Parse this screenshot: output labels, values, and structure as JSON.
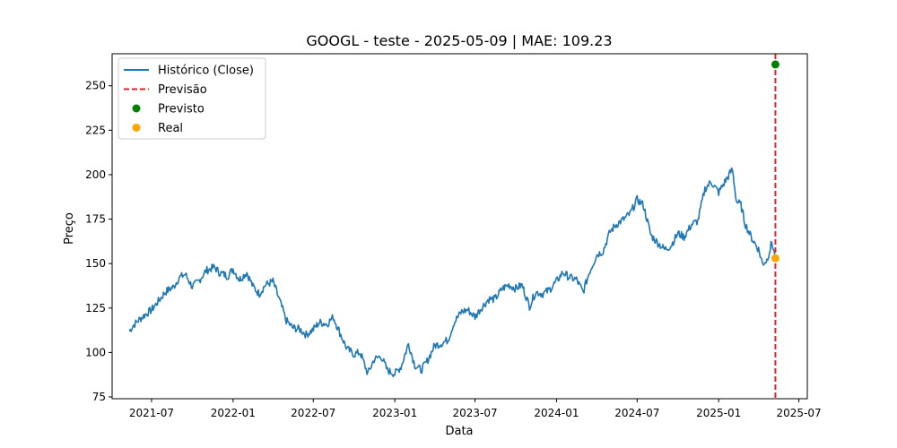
{
  "chart_data": {
    "type": "line",
    "title": "GOOGL - teste - 2025-05-09 | MAE: 109.23",
    "xlabel": "Data",
    "ylabel": "Preço",
    "ylim": [
      74,
      268
    ],
    "xlim": [
      "2021-04-03",
      "2025-07-20"
    ],
    "yticks": [
      75,
      100,
      125,
      150,
      175,
      200,
      225,
      250
    ],
    "xticks": [
      "2021-07",
      "2022-01",
      "2022-07",
      "2023-01",
      "2023-07",
      "2024-01",
      "2024-07",
      "2025-01",
      "2025-07"
    ],
    "grid": false,
    "legend_position": "top-left",
    "series": [
      {
        "name": "Histórico (Close)",
        "style": "line",
        "color": "#1f77b4",
        "points": [
          [
            "2021-05-12",
            112
          ],
          [
            "2021-05-20",
            115
          ],
          [
            "2021-06-01",
            118
          ],
          [
            "2021-06-15",
            121
          ],
          [
            "2021-07-01",
            124
          ],
          [
            "2021-07-20",
            130
          ],
          [
            "2021-08-01",
            134
          ],
          [
            "2021-08-20",
            137
          ],
          [
            "2021-09-01",
            142
          ],
          [
            "2021-09-15",
            144
          ],
          [
            "2021-10-01",
            137
          ],
          [
            "2021-10-15",
            140
          ],
          [
            "2021-11-01",
            146
          ],
          [
            "2021-11-20",
            148
          ],
          [
            "2021-12-01",
            145
          ],
          [
            "2021-12-20",
            143
          ],
          [
            "2022-01-01",
            147
          ],
          [
            "2022-01-15",
            141
          ],
          [
            "2022-02-01",
            145
          ],
          [
            "2022-02-15",
            137
          ],
          [
            "2022-03-01",
            133
          ],
          [
            "2022-03-15",
            138
          ],
          [
            "2022-04-01",
            140
          ],
          [
            "2022-04-15",
            130
          ],
          [
            "2022-05-01",
            118
          ],
          [
            "2022-05-15",
            114
          ],
          [
            "2022-06-01",
            113
          ],
          [
            "2022-06-15",
            110
          ],
          [
            "2022-07-01",
            113
          ],
          [
            "2022-07-15",
            117
          ],
          [
            "2022-08-01",
            116
          ],
          [
            "2022-08-15",
            120
          ],
          [
            "2022-09-01",
            110
          ],
          [
            "2022-09-15",
            102
          ],
          [
            "2022-10-01",
            99
          ],
          [
            "2022-10-15",
            100
          ],
          [
            "2022-11-01",
            88
          ],
          [
            "2022-11-15",
            96
          ],
          [
            "2022-12-01",
            98
          ],
          [
            "2022-12-15",
            90
          ],
          [
            "2023-01-01",
            88
          ],
          [
            "2023-01-15",
            92
          ],
          [
            "2023-02-01",
            105
          ],
          [
            "2023-02-15",
            93
          ],
          [
            "2023-03-01",
            90
          ],
          [
            "2023-03-15",
            95
          ],
          [
            "2023-04-01",
            104
          ],
          [
            "2023-04-15",
            105
          ],
          [
            "2023-05-01",
            107
          ],
          [
            "2023-05-15",
            117
          ],
          [
            "2023-06-01",
            123
          ],
          [
            "2023-06-15",
            124
          ],
          [
            "2023-07-01",
            120
          ],
          [
            "2023-07-15",
            125
          ],
          [
            "2023-08-01",
            130
          ],
          [
            "2023-08-15",
            130
          ],
          [
            "2023-09-01",
            136
          ],
          [
            "2023-09-15",
            138
          ],
          [
            "2023-10-01",
            136
          ],
          [
            "2023-10-15",
            138
          ],
          [
            "2023-11-01",
            126
          ],
          [
            "2023-11-15",
            134
          ],
          [
            "2023-12-01",
            133
          ],
          [
            "2023-12-15",
            135
          ],
          [
            "2024-01-01",
            140
          ],
          [
            "2024-01-15",
            145
          ],
          [
            "2024-02-01",
            142
          ],
          [
            "2024-02-15",
            141
          ],
          [
            "2024-03-01",
            134
          ],
          [
            "2024-03-15",
            145
          ],
          [
            "2024-04-01",
            155
          ],
          [
            "2024-04-15",
            157
          ],
          [
            "2024-05-01",
            168
          ],
          [
            "2024-05-15",
            172
          ],
          [
            "2024-06-01",
            175
          ],
          [
            "2024-06-15",
            178
          ],
          [
            "2024-07-01",
            186
          ],
          [
            "2024-07-15",
            183
          ],
          [
            "2024-08-01",
            166
          ],
          [
            "2024-08-15",
            162
          ],
          [
            "2024-09-01",
            158
          ],
          [
            "2024-09-15",
            160
          ],
          [
            "2024-10-01",
            167
          ],
          [
            "2024-10-15",
            165
          ],
          [
            "2024-11-01",
            172
          ],
          [
            "2024-11-15",
            174
          ],
          [
            "2024-12-01",
            192
          ],
          [
            "2024-12-15",
            196
          ],
          [
            "2025-01-01",
            190
          ],
          [
            "2025-01-15",
            196
          ],
          [
            "2025-02-01",
            203
          ],
          [
            "2025-02-10",
            185
          ],
          [
            "2025-02-20",
            183
          ],
          [
            "2025-03-01",
            173
          ],
          [
            "2025-03-15",
            165
          ],
          [
            "2025-04-01",
            158
          ],
          [
            "2025-04-10",
            150
          ],
          [
            "2025-04-20",
            152
          ],
          [
            "2025-05-01",
            162
          ],
          [
            "2025-05-08",
            154
          ]
        ]
      }
    ],
    "prediction_line": {
      "name": "Previsão",
      "x": "2025-05-09",
      "color": "#d62728",
      "style": "dashed"
    },
    "scatter": [
      {
        "name": "Previsto",
        "color": "#008000",
        "points": [
          [
            "2025-05-09",
            262
          ]
        ]
      },
      {
        "name": "Real",
        "color": "#ffa500",
        "points": [
          [
            "2025-05-09",
            153
          ]
        ]
      }
    ]
  }
}
